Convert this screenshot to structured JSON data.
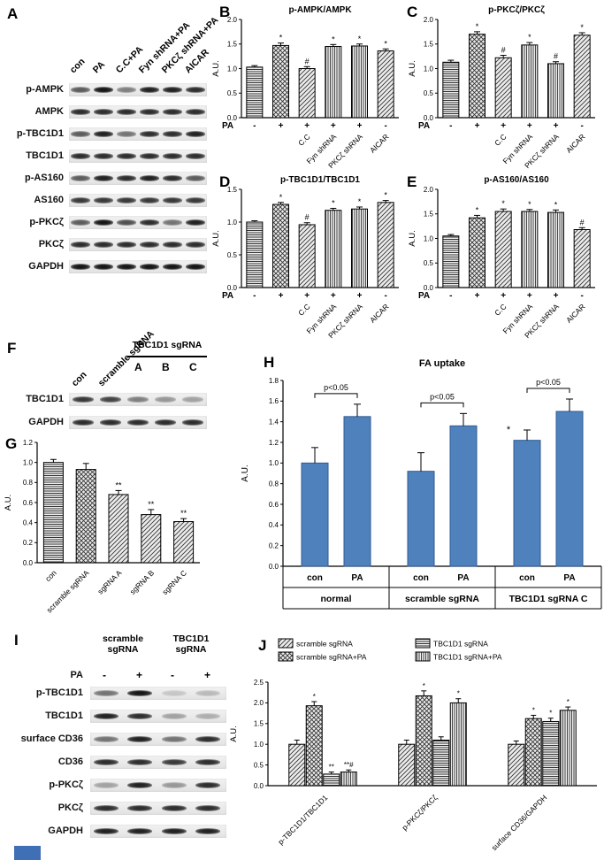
{
  "page": {
    "bg": "#ffffff",
    "artifact_color": "#3f6fb5"
  },
  "panel_letters": {
    "A": "A",
    "B": "B",
    "C": "C",
    "D": "D",
    "E": "E",
    "F": "F",
    "G": "G",
    "H": "H",
    "I": "I",
    "J": "J"
  },
  "blots": {
    "A": {
      "lanes": [
        "con",
        "PA",
        "C.C+PA",
        "Fyn shRNA+PA",
        "PKCζ shRNA+PA",
        "AICAR"
      ],
      "rows": [
        {
          "label": "p-AMPK",
          "bands": [
            0.6,
            0.9,
            0.45,
            0.85,
            0.85,
            0.8
          ]
        },
        {
          "label": "AMPK",
          "bands": [
            0.8,
            0.8,
            0.8,
            0.8,
            0.8,
            0.8
          ]
        },
        {
          "label": "p-TBC1D1",
          "bands": [
            0.6,
            0.85,
            0.5,
            0.8,
            0.8,
            0.85
          ]
        },
        {
          "label": "TBC1D1",
          "bands": [
            0.8,
            0.8,
            0.8,
            0.8,
            0.8,
            0.8
          ]
        },
        {
          "label": "p-AS160",
          "bands": [
            0.6,
            0.85,
            0.8,
            0.85,
            0.8,
            0.6
          ]
        },
        {
          "label": "AS160",
          "bands": [
            0.75,
            0.75,
            0.75,
            0.75,
            0.75,
            0.75
          ]
        },
        {
          "label": "p-PKCζ",
          "bands": [
            0.6,
            0.9,
            0.65,
            0.8,
            0.5,
            0.85
          ]
        },
        {
          "label": "PKCζ",
          "bands": [
            0.8,
            0.8,
            0.8,
            0.8,
            0.8,
            0.8
          ]
        },
        {
          "label": "GAPDH",
          "bands": [
            0.9,
            0.9,
            0.9,
            0.9,
            0.9,
            0.9
          ]
        }
      ]
    },
    "F": {
      "lanes_rotated": [
        "con",
        "scramble sgRNA"
      ],
      "group_label": "TBC1D1 sgRNA",
      "group_sublanes": [
        "A",
        "B",
        "C"
      ],
      "rows": [
        {
          "label": "TBC1D1",
          "bands": [
            0.75,
            0.7,
            0.45,
            0.35,
            0.3
          ]
        },
        {
          "label": "GAPDH",
          "bands": [
            0.8,
            0.8,
            0.8,
            0.8,
            0.8
          ]
        }
      ]
    },
    "I": {
      "col_groups": [
        "scramble\nsgRNA",
        "TBC1D1\nsgRNA"
      ],
      "pa_label": "PA",
      "pa_signs": [
        "-",
        "+",
        "-",
        "+"
      ],
      "rows": [
        {
          "label": "p-TBC1D1",
          "bands": [
            0.5,
            0.9,
            0.15,
            0.2
          ]
        },
        {
          "label": "TBC1D1",
          "bands": [
            0.85,
            0.8,
            0.3,
            0.25
          ]
        },
        {
          "label": "surface CD36",
          "bands": [
            0.5,
            0.85,
            0.5,
            0.8
          ]
        },
        {
          "label": "CD36",
          "bands": [
            0.8,
            0.8,
            0.75,
            0.8
          ]
        },
        {
          "label": "p-PKCζ",
          "bands": [
            0.3,
            0.85,
            0.35,
            0.8
          ]
        },
        {
          "label": "PKCζ",
          "bands": [
            0.8,
            0.8,
            0.8,
            0.8
          ]
        },
        {
          "label": "GAPDH",
          "bands": [
            0.85,
            0.85,
            0.85,
            0.85
          ]
        }
      ]
    }
  },
  "chart_data": [
    {
      "panel": "B",
      "type": "bar",
      "title": "p-AMPK/AMPK",
      "ylabel": "A.U.",
      "ylim": [
        0,
        2.0
      ],
      "ytick_step": 0.5,
      "pa_label": "PA",
      "pa_signs": [
        "-",
        "+",
        "+",
        "+",
        "+",
        "-"
      ],
      "x_labels": [
        "",
        "",
        "C.C",
        "Fyn shRNA",
        "PKCζ shRNA",
        "AICAR"
      ],
      "values": [
        1.03,
        1.47,
        1.0,
        1.45,
        1.46,
        1.36
      ],
      "errors": [
        0.03,
        0.05,
        0.04,
        0.04,
        0.04,
        0.04
      ],
      "sig": [
        "",
        "*",
        "#",
        "*",
        "*",
        "*"
      ],
      "patterns": [
        "hlines",
        "cross",
        "diag",
        "vlines",
        "vlines",
        "diag"
      ]
    },
    {
      "panel": "C",
      "type": "bar",
      "title": "p-PKCζ/PKCζ",
      "ylabel": "A.U.",
      "ylim": [
        0,
        2.0
      ],
      "ytick_step": 0.5,
      "pa_label": "PA",
      "pa_signs": [
        "-",
        "+",
        "+",
        "+",
        "+",
        "-"
      ],
      "x_labels": [
        "",
        "",
        "C.C",
        "Fyn shRNA",
        "PKCζ shRNA",
        "AICAR"
      ],
      "values": [
        1.13,
        1.7,
        1.22,
        1.48,
        1.1,
        1.68
      ],
      "errors": [
        0.04,
        0.05,
        0.05,
        0.05,
        0.04,
        0.05
      ],
      "sig": [
        "",
        "*",
        "#",
        "*",
        "#",
        "*"
      ],
      "patterns": [
        "hlines",
        "cross",
        "diag",
        "vlines",
        "vlines",
        "diag"
      ]
    },
    {
      "panel": "D",
      "type": "bar",
      "title": "p-TBC1D1/TBC1D1",
      "ylabel": "A.U.",
      "ylim": [
        0,
        1.5
      ],
      "ytick_step": 0.5,
      "pa_label": "PA",
      "pa_signs": [
        "-",
        "+",
        "+",
        "+",
        "+",
        "-"
      ],
      "x_labels": [
        "",
        "",
        "C.C",
        "Fyn shRNA",
        "PKCζ shRNA",
        "AICAR"
      ],
      "values": [
        1.0,
        1.27,
        0.96,
        1.18,
        1.2,
        1.3
      ],
      "errors": [
        0.02,
        0.03,
        0.03,
        0.03,
        0.03,
        0.03
      ],
      "sig": [
        "",
        "*",
        "#",
        "*",
        "*",
        "*"
      ],
      "patterns": [
        "hlines",
        "cross",
        "diag",
        "vlines",
        "vlines",
        "diag"
      ]
    },
    {
      "panel": "E",
      "type": "bar",
      "title": "p-AS160/AS160",
      "ylabel": "A.U.",
      "ylim": [
        0,
        2.0
      ],
      "ytick_step": 0.5,
      "pa_label": "PA",
      "pa_signs": [
        "-",
        "+",
        "+",
        "+",
        "+",
        "-"
      ],
      "x_labels": [
        "",
        "",
        "C.C",
        "Fyn shRNA",
        "PKCζ shRNA",
        "AICAR"
      ],
      "values": [
        1.05,
        1.42,
        1.55,
        1.55,
        1.53,
        1.18
      ],
      "errors": [
        0.03,
        0.05,
        0.05,
        0.04,
        0.05,
        0.04
      ],
      "sig": [
        "",
        "*",
        "*",
        "*",
        "*",
        "#"
      ],
      "patterns": [
        "hlines",
        "cross",
        "diag",
        "vlines",
        "vlines",
        "diag"
      ]
    },
    {
      "panel": "G",
      "type": "bar",
      "title": "",
      "ylabel": "A.U.",
      "ylim": [
        0,
        1.2
      ],
      "ytick_step": 0.2,
      "x_labels": [
        "con",
        "scramble sgRNA",
        "sgRNA A",
        "sgRNA B",
        "sgRNA C"
      ],
      "values": [
        1.0,
        0.93,
        0.68,
        0.48,
        0.41
      ],
      "errors": [
        0.03,
        0.06,
        0.04,
        0.05,
        0.03
      ],
      "sig": [
        "",
        "",
        "**",
        "**",
        "**"
      ],
      "patterns": [
        "hlines",
        "cross",
        "diag",
        "diag",
        "diag"
      ]
    },
    {
      "panel": "H",
      "type": "bar-grouped",
      "title": "FA uptake",
      "ylabel": "A.U.",
      "ylim": [
        0,
        1.8
      ],
      "ytick_step": 0.2,
      "bar_color": "#4f81bd",
      "groups": [
        {
          "label": "normal",
          "bracket": "p<0.05",
          "bars": [
            {
              "x": "con",
              "v": 1.0,
              "e": 0.15,
              "sig": ""
            },
            {
              "x": "PA",
              "v": 1.45,
              "e": 0.12,
              "sig": ""
            }
          ]
        },
        {
          "label": "scramble sgRNA",
          "bracket": "p<0.05",
          "bars": [
            {
              "x": "con",
              "v": 0.92,
              "e": 0.18,
              "sig": ""
            },
            {
              "x": "PA",
              "v": 1.36,
              "e": 0.12,
              "sig": ""
            }
          ]
        },
        {
          "label": "TBC1D1 sgRNA C",
          "bracket": "p<0.05",
          "bars": [
            {
              "x": "con",
              "v": 1.22,
              "e": 0.1,
              "sig": "*"
            },
            {
              "x": "PA",
              "v": 1.5,
              "e": 0.12,
              "sig": ""
            }
          ]
        }
      ]
    },
    {
      "panel": "J",
      "type": "bar-multiseries",
      "ylabel": "A.U.",
      "ylim": [
        0,
        2.5
      ],
      "ytick_step": 0.5,
      "legend": [
        {
          "name": "scramble sgRNA",
          "pattern": "diag"
        },
        {
          "name": "scramble sgRNA+PA",
          "pattern": "cross"
        },
        {
          "name": "TBC1D1 sgRNA",
          "pattern": "hlines"
        },
        {
          "name": "TBC1D1 sgRNA+PA",
          "pattern": "vlines"
        }
      ],
      "categories": [
        "p-TBC1D1/TBC1D1",
        "p-PKCζ/PKCζ",
        "surface CD36/GAPDH"
      ],
      "series": [
        {
          "name": "scramble sgRNA",
          "values": [
            1.0,
            1.0,
            1.0
          ],
          "errors": [
            0.1,
            0.1,
            0.08
          ],
          "sig": [
            "",
            "",
            ""
          ]
        },
        {
          "name": "scramble sgRNA+PA",
          "values": [
            1.93,
            2.17,
            1.62
          ],
          "errors": [
            0.1,
            0.12,
            0.08
          ],
          "sig": [
            "*",
            "*",
            "*"
          ]
        },
        {
          "name": "TBC1D1 sgRNA",
          "values": [
            0.28,
            1.1,
            1.55
          ],
          "errors": [
            0.05,
            0.08,
            0.08
          ],
          "sig": [
            "**",
            "",
            "*"
          ]
        },
        {
          "name": "TBC1D1 sgRNA+PA",
          "values": [
            0.33,
            2.0,
            1.82
          ],
          "errors": [
            0.05,
            0.1,
            0.08
          ],
          "sig": [
            "**#",
            "*",
            "*"
          ]
        }
      ]
    }
  ]
}
